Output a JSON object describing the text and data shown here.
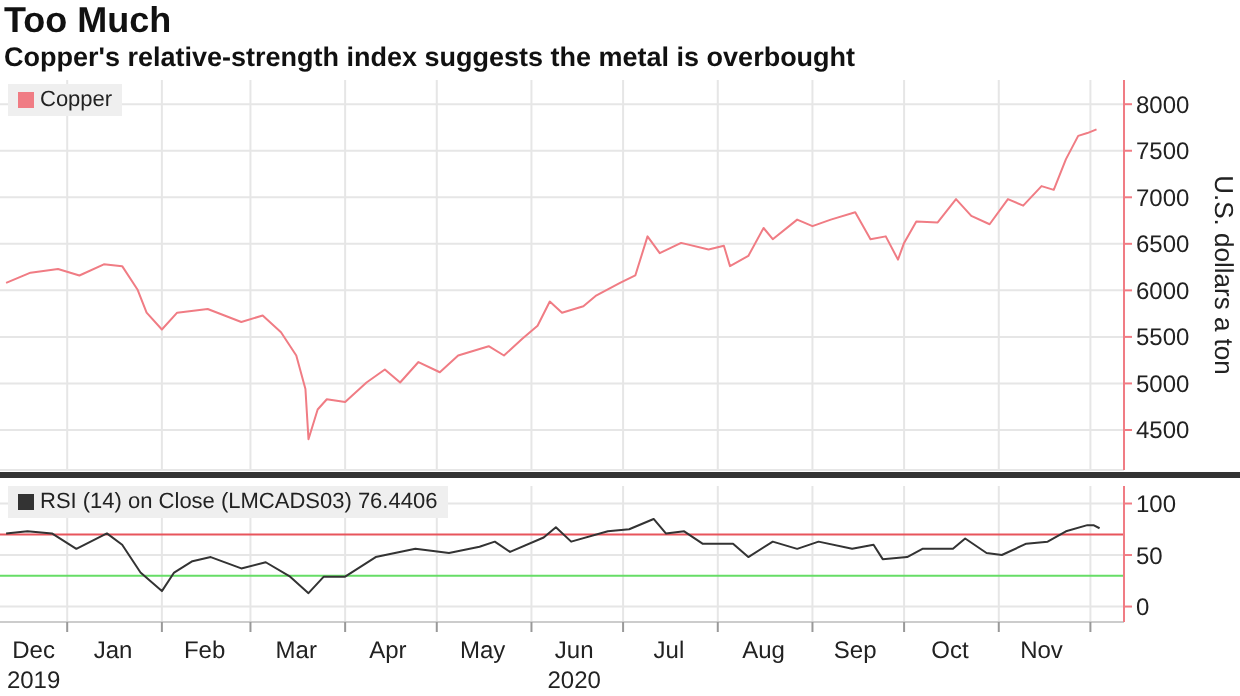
{
  "chart_data": [
    {
      "type": "line",
      "title": "Too Much",
      "subtitle": "Copper's relative-strength index suggests the metal is overbought",
      "ylabel": "U.S. dollars a ton",
      "series": [
        {
          "name": "Copper",
          "color": "#f07c84",
          "x": [
            "2019-12-12",
            "2019-12-20",
            "2019-12-29",
            "2020-01-05",
            "2020-01-13",
            "2020-01-19",
            "2020-01-24",
            "2020-01-27",
            "2020-02-01",
            "2020-02-06",
            "2020-02-16",
            "2020-02-27",
            "2020-03-05",
            "2020-03-11",
            "2020-03-16",
            "2020-03-19",
            "2020-03-20",
            "2020-03-23",
            "2020-03-26",
            "2020-04-01",
            "2020-04-08",
            "2020-04-14",
            "2020-04-19",
            "2020-04-25",
            "2020-05-02",
            "2020-05-08",
            "2020-05-18",
            "2020-05-23",
            "2020-05-29",
            "2020-06-03",
            "2020-06-07",
            "2020-06-11",
            "2020-06-18",
            "2020-06-22",
            "2020-06-30",
            "2020-07-05",
            "2020-07-09",
            "2020-07-13",
            "2020-07-20",
            "2020-07-29",
            "2020-08-03",
            "2020-08-05",
            "2020-08-11",
            "2020-08-16",
            "2020-08-19",
            "2020-08-27",
            "2020-09-01",
            "2020-09-07",
            "2020-09-15",
            "2020-09-20",
            "2020-09-25",
            "2020-09-29",
            "2020-10-01",
            "2020-10-05",
            "2020-10-12",
            "2020-10-18",
            "2020-10-23",
            "2020-10-29",
            "2020-11-04",
            "2020-11-09",
            "2020-11-15",
            "2020-11-19",
            "2020-11-23",
            "2020-11-27",
            "2020-11-30",
            "2020-12-03"
          ],
          "values": [
            6080,
            6190,
            6230,
            6160,
            6280,
            6260,
            6010,
            5760,
            5580,
            5760,
            5800,
            5660,
            5730,
            5550,
            5300,
            4940,
            4400,
            4720,
            4830,
            4800,
            5010,
            5150,
            5010,
            5230,
            5120,
            5300,
            5400,
            5300,
            5480,
            5620,
            5880,
            5760,
            5830,
            5940,
            6080,
            6160,
            6580,
            6400,
            6510,
            6440,
            6480,
            6260,
            6370,
            6670,
            6550,
            6760,
            6690,
            6760,
            6840,
            6550,
            6580,
            6330,
            6510,
            6740,
            6730,
            6980,
            6800,
            6710,
            6980,
            6910,
            7120,
            7080,
            7410,
            7660,
            7690,
            7730
          ]
        }
      ],
      "xlim": [
        "2019-12-10",
        "2020-12-12"
      ],
      "xticks": [
        {
          "value": "2020-01-01",
          "label": null
        },
        {
          "value": "2020-02-01",
          "label": null
        },
        {
          "value": "2020-03-01",
          "label": null
        },
        {
          "value": "2020-04-01",
          "label": null
        },
        {
          "value": "2020-05-01",
          "label": null
        },
        {
          "value": "2020-06-01",
          "label": null
        },
        {
          "value": "2020-07-01",
          "label": null
        },
        {
          "value": "2020-08-01",
          "label": null
        },
        {
          "value": "2020-09-01",
          "label": null
        },
        {
          "value": "2020-10-01",
          "label": null
        },
        {
          "value": "2020-11-01",
          "label": null
        },
        {
          "value": "2020-12-01",
          "label": null
        }
      ],
      "ylim": [
        4070,
        8260
      ],
      "yticks": [
        4500,
        5000,
        5500,
        6000,
        6500,
        7000,
        7500,
        8000
      ],
      "grid": true,
      "legend": "top left",
      "tick_labels": "y"
    },
    {
      "type": "line",
      "series": [
        {
          "name": "RSI (14) on Close (LMCADS03) 76.4406",
          "color": "#333333",
          "x": [
            "2019-12-12",
            "2019-12-19",
            "2019-12-27",
            "2020-01-04",
            "2020-01-14",
            "2020-01-19",
            "2020-01-25",
            "2020-02-01",
            "2020-02-05",
            "2020-02-11",
            "2020-02-17",
            "2020-02-27",
            "2020-03-06",
            "2020-03-14",
            "2020-03-20",
            "2020-03-25",
            "2020-04-01",
            "2020-04-11",
            "2020-04-24",
            "2020-05-05",
            "2020-05-15",
            "2020-05-20",
            "2020-05-25",
            "2020-06-05",
            "2020-06-09",
            "2020-06-14",
            "2020-06-26",
            "2020-07-03",
            "2020-07-11",
            "2020-07-15",
            "2020-07-21",
            "2020-07-27",
            "2020-08-06",
            "2020-08-11",
            "2020-08-19",
            "2020-08-27",
            "2020-09-03",
            "2020-09-14",
            "2020-09-21",
            "2020-09-24",
            "2020-10-02",
            "2020-10-07",
            "2020-10-17",
            "2020-10-21",
            "2020-10-28",
            "2020-11-02",
            "2020-11-10",
            "2020-11-17",
            "2020-11-23",
            "2020-11-30",
            "2020-12-02",
            "2020-12-04"
          ],
          "values": [
            71,
            73,
            71,
            56,
            71,
            60,
            33,
            15,
            33,
            44,
            48,
            37,
            43,
            29,
            13,
            29,
            29,
            48,
            56,
            52,
            58,
            63,
            53,
            67,
            77,
            63,
            73,
            75,
            85,
            71,
            73,
            61,
            61,
            48,
            63,
            56,
            63,
            56,
            60,
            46,
            48,
            56,
            56,
            66,
            52,
            50,
            61,
            63,
            73,
            79,
            79,
            76
          ]
        }
      ],
      "xlim": [
        "2019-12-10",
        "2020-12-12"
      ],
      "xticks": [
        {
          "value": "2019-12-21",
          "label": "Dec\n2019"
        },
        {
          "value": "2020-01-01",
          "label": null
        },
        {
          "value": "2020-01-16",
          "label": "Jan"
        },
        {
          "value": "2020-02-01",
          "label": null
        },
        {
          "value": "2020-02-15",
          "label": "Feb"
        },
        {
          "value": "2020-03-01",
          "label": null
        },
        {
          "value": "2020-03-16",
          "label": "Mar"
        },
        {
          "value": "2020-04-01",
          "label": null
        },
        {
          "value": "2020-04-15",
          "label": "Apr"
        },
        {
          "value": "2020-05-01",
          "label": null
        },
        {
          "value": "2020-05-16",
          "label": "May"
        },
        {
          "value": "2020-06-01",
          "label": null
        },
        {
          "value": "2020-06-15",
          "label": "Jun\n2020"
        },
        {
          "value": "2020-07-01",
          "label": null
        },
        {
          "value": "2020-07-16",
          "label": "Jul"
        },
        {
          "value": "2020-08-01",
          "label": null
        },
        {
          "value": "2020-08-16",
          "label": "Aug"
        },
        {
          "value": "2020-09-01",
          "label": null
        },
        {
          "value": "2020-09-15",
          "label": "Sep"
        },
        {
          "value": "2020-10-01",
          "label": null
        },
        {
          "value": "2020-10-16",
          "label": "Oct"
        },
        {
          "value": "2020-11-01",
          "label": null
        },
        {
          "value": "2020-11-15",
          "label": "Nov"
        },
        {
          "value": "2020-12-01",
          "label": null
        }
      ],
      "ylim": [
        -15,
        117
      ],
      "yticks": [
        0,
        50,
        100
      ],
      "ref_lines": [
        {
          "axis": "y",
          "value": 70,
          "color": "#e8555c"
        },
        {
          "axis": "y",
          "value": 30,
          "color": "#66dd66"
        }
      ],
      "grid": true,
      "legend": "top left"
    }
  ]
}
